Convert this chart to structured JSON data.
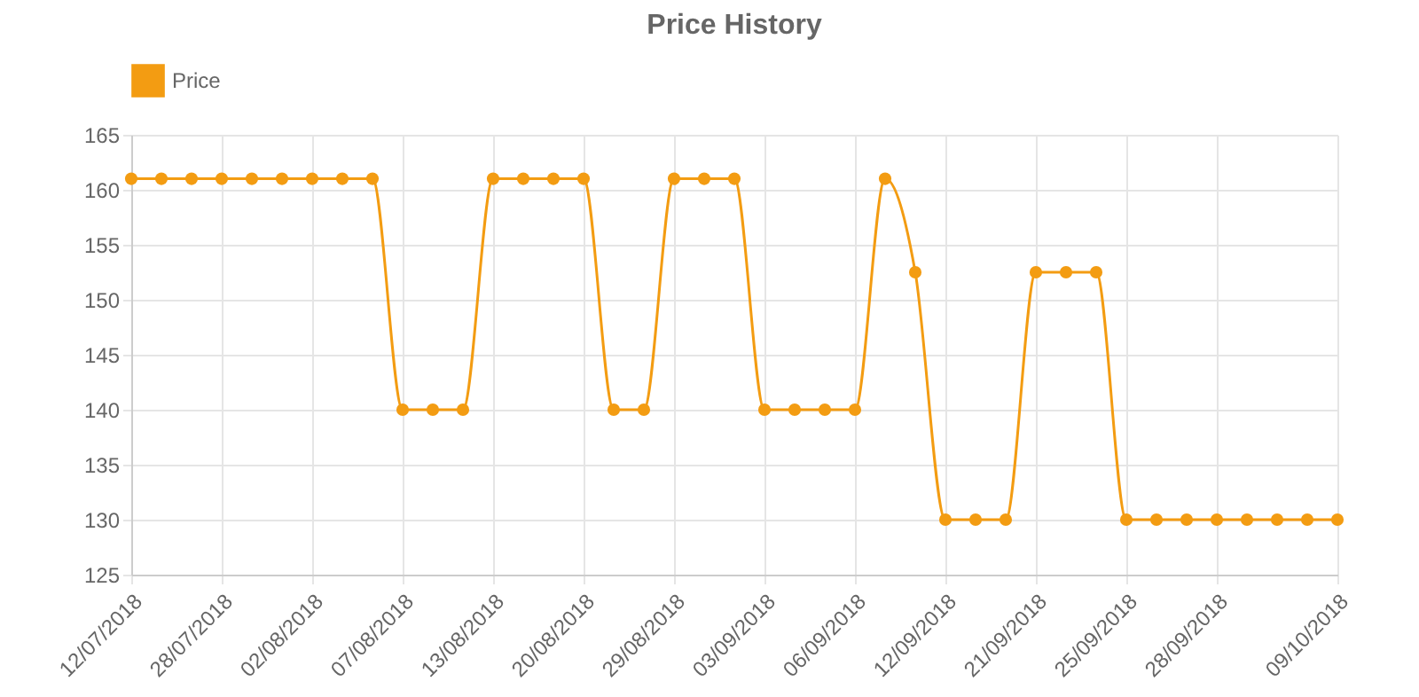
{
  "chart_data": {
    "type": "line",
    "title": "Price History",
    "categories": [
      "12/07/2018",
      null,
      null,
      "28/07/2018",
      null,
      null,
      "02/08/2018",
      null,
      null,
      "07/08/2018",
      null,
      null,
      "13/08/2018",
      null,
      null,
      "20/08/2018",
      null,
      null,
      "29/08/2018",
      null,
      null,
      "03/09/2018",
      null,
      null,
      "06/09/2018",
      null,
      null,
      "12/09/2018",
      null,
      null,
      "21/09/2018",
      null,
      null,
      "25/09/2018",
      null,
      null,
      "28/09/2018",
      null,
      null,
      null,
      "09/10/2018"
    ],
    "series": [
      {
        "name": "Price",
        "color": "#f39c12",
        "values": [
          161,
          161,
          161,
          161,
          161,
          161,
          161,
          161,
          161,
          140,
          140,
          140,
          161,
          161,
          161,
          161,
          140,
          140,
          161,
          161,
          161,
          140,
          140,
          140,
          140,
          161,
          152.5,
          130,
          130,
          130,
          152.5,
          152.5,
          152.5,
          130,
          130,
          130,
          130,
          130,
          130,
          130,
          130
        ]
      }
    ],
    "ylim": [
      125,
      165
    ],
    "yticks": [
      125,
      130,
      135,
      140,
      145,
      150,
      155,
      160,
      165
    ],
    "grid": true,
    "legend": "top",
    "marker": "circle",
    "line_style": "solid"
  }
}
